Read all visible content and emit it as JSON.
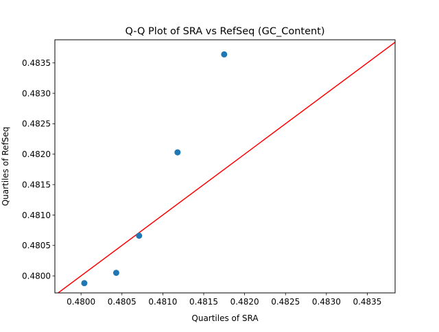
{
  "chart_data": {
    "type": "scatter",
    "title": "Q-Q Plot of SRA vs RefSeq (GC_Content)",
    "xlabel": "Quartiles of SRA",
    "ylabel": "Quartiles of RefSeq",
    "xlim": [
      0.47968,
      0.48384
    ],
    "ylim": [
      0.47972,
      0.48388
    ],
    "xticks": [
      0.48,
      0.4805,
      0.481,
      0.4815,
      0.482,
      0.4825,
      0.483,
      0.4835
    ],
    "xtick_labels": [
      "0.4800",
      "0.4805",
      "0.4810",
      "0.4815",
      "0.4820",
      "0.4825",
      "0.4830",
      "0.4835"
    ],
    "yticks": [
      0.48,
      0.4805,
      0.481,
      0.4815,
      0.482,
      0.4825,
      0.483,
      0.4835
    ],
    "ytick_labels": [
      "0.4800",
      "0.4805",
      "0.4810",
      "0.4815",
      "0.4820",
      "0.4825",
      "0.4830",
      "0.4835"
    ],
    "points": [
      {
        "x": 0.48004,
        "y": 0.47988
      },
      {
        "x": 0.48043,
        "y": 0.48005
      },
      {
        "x": 0.48071,
        "y": 0.48066
      },
      {
        "x": 0.48118,
        "y": 0.48203
      },
      {
        "x": 0.48175,
        "y": 0.48364
      }
    ],
    "reference_line": {
      "type": "y=x",
      "color": "#ff0000"
    },
    "point_color": "#1f77b4",
    "grid": false,
    "legend": "none"
  }
}
